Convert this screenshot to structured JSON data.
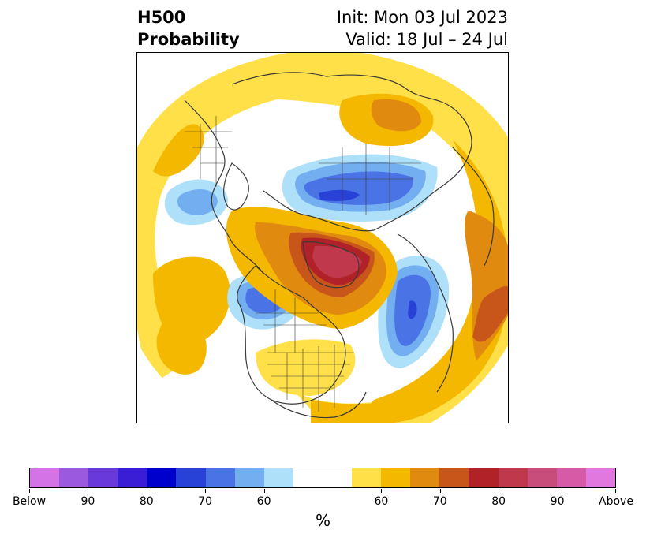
{
  "title": {
    "left_line1": "H500",
    "left_line2": "Probability",
    "right_line1": "Init: Mon 03 Jul 2023",
    "right_line2": "Valid: 18 Jul – 24 Jul"
  },
  "colorbar": {
    "unit": "%",
    "colors": [
      "#d473e6",
      "#9b59e0",
      "#6a39d9",
      "#3a1ed6",
      "#0000cd",
      "#2842d8",
      "#4a74e6",
      "#72aef0",
      "#aee0fa",
      "#ffffff",
      "#ffffff",
      "#ffe048",
      "#f5b800",
      "#e08a10",
      "#c8561a",
      "#b02228",
      "#c0384c",
      "#c84d7a",
      "#d65aa6",
      "#e078e0"
    ],
    "tick_labels": [
      "Below",
      "90",
      "80",
      "70",
      "60",
      "60",
      "70",
      "80",
      "90",
      "Above"
    ]
  },
  "map": {
    "fill_colors": {
      "light_yellow": "#ffe048",
      "gold": "#f5b800",
      "orange": "#e08a10",
      "dark_orange": "#c8561a",
      "red": "#b02228",
      "crimson": "#c0384c",
      "light_blue": "#aee0fa",
      "sky_blue": "#72aef0",
      "blue": "#4a74e6",
      "deep_blue": "#2842d8",
      "coast": "#3a3a3a"
    }
  }
}
